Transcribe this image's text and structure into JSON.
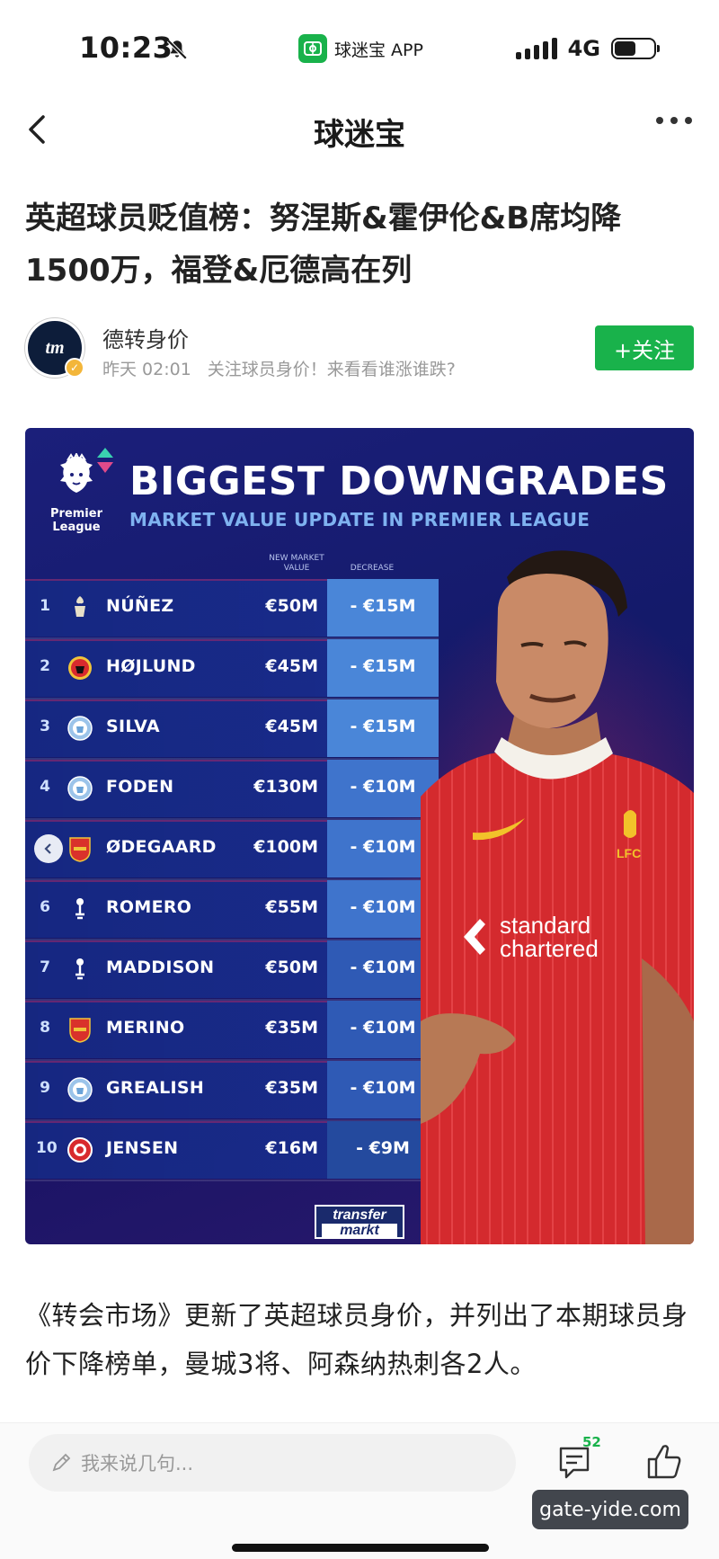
{
  "status_bar": {
    "time": "10:23",
    "app_name": "球迷宝 APP",
    "network": "4G",
    "battery_level": 0.55
  },
  "nav": {
    "title": "球迷宝"
  },
  "article": {
    "title": "英超球员贬值榜：努涅斯&霍伊伦&B席均降1500万，福登&厄德高在列",
    "author": {
      "avatar_text": "tm",
      "name": "德转身价",
      "time": "昨天 02:01",
      "tagline": "关注球员身价！来看看谁涨谁跌?"
    },
    "follow_label": "+关注",
    "body": "《转会市场》更新了英超球员身价，并列出了本期球员身价下降榜单，曼城3将、阿森纳热刺各2人。"
  },
  "infographic": {
    "league_text": "Premier League",
    "title": "BIGGEST DOWNGRADES",
    "subtitle": "MARKET VALUE UPDATE IN PREMIER LEAGUE",
    "col_new_value": "NEW MARKET VALUE",
    "col_decrease": "DECREASE",
    "brand": [
      "transfer",
      "markt"
    ],
    "rows": [
      {
        "rank": "1",
        "club": "liverpool",
        "name": "NÚÑEZ",
        "value": "€50M",
        "decrease": "- €15M"
      },
      {
        "rank": "2",
        "club": "man-utd",
        "name": "HØJLUND",
        "value": "€45M",
        "decrease": "- €15M"
      },
      {
        "rank": "3",
        "club": "man-city",
        "name": "SILVA",
        "value": "€45M",
        "decrease": "- €15M"
      },
      {
        "rank": "4",
        "club": "man-city",
        "name": "FODEN",
        "value": "€130M",
        "decrease": "- €10M"
      },
      {
        "rank": "",
        "club": "arsenal",
        "name": "ØDEGAARD",
        "value": "€100M",
        "decrease": "- €10M"
      },
      {
        "rank": "6",
        "club": "tottenham",
        "name": "ROMERO",
        "value": "€55M",
        "decrease": "- €10M"
      },
      {
        "rank": "7",
        "club": "tottenham",
        "name": "MADDISON",
        "value": "€50M",
        "decrease": "- €10M"
      },
      {
        "rank": "8",
        "club": "arsenal",
        "name": "MERINO",
        "value": "€35M",
        "decrease": "- €10M"
      },
      {
        "rank": "9",
        "club": "man-city",
        "name": "GREALISH",
        "value": "€35M",
        "decrease": "- €10M"
      },
      {
        "rank": "10",
        "club": "brentford",
        "name": "JENSEN",
        "value": "€16M",
        "decrease": "- €9M"
      }
    ],
    "shirt_text": [
      "standard",
      "chartered"
    ],
    "crest_text": "LFC"
  },
  "bottom_bar": {
    "comment_placeholder": "我来说几句...",
    "comment_count": "52",
    "watermark": "gate-yide.com"
  },
  "colors": {
    "accent_green": "#19b24b",
    "infographic_bg": "#1b1f7a",
    "decrease_band": "#4a86d8"
  }
}
